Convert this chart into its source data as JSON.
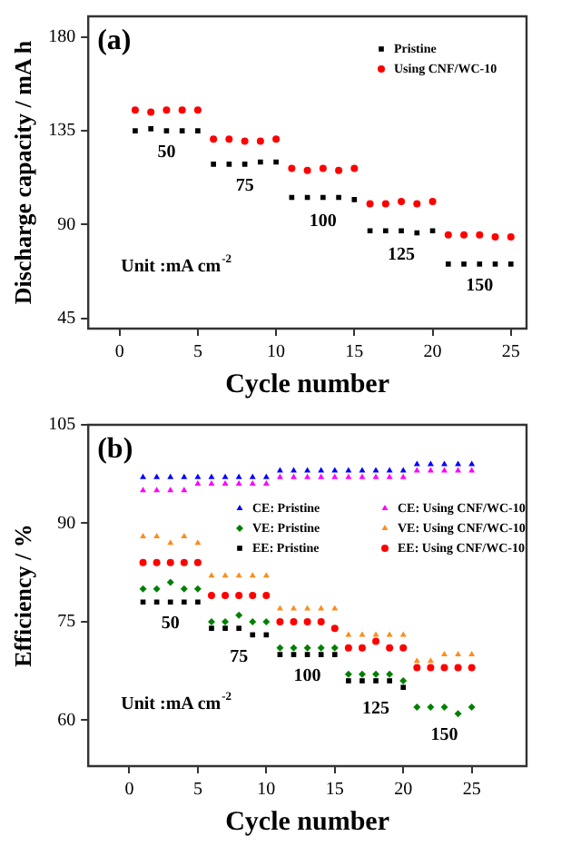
{
  "chart_data": [
    {
      "type": "scatter",
      "title": "(a)",
      "xlabel": "Cycle number",
      "ylabel": "Discharge capacity / mA h",
      "x": [
        1,
        2,
        3,
        4,
        5,
        6,
        7,
        8,
        9,
        10,
        11,
        12,
        13,
        14,
        15,
        16,
        17,
        18,
        19,
        20,
        21,
        22,
        23,
        24,
        25
      ],
      "series": [
        {
          "name": "Pristine",
          "color": "#000000",
          "marker": "square",
          "values": [
            135,
            136,
            135,
            135,
            135,
            119,
            119,
            119,
            120,
            120,
            103,
            103,
            103,
            103,
            102,
            87,
            87,
            87,
            86,
            87,
            71,
            71,
            71,
            71,
            71
          ]
        },
        {
          "name": "Using CNF/WC-10",
          "color": "#ff0000",
          "marker": "circle",
          "values": [
            145,
            144,
            145,
            145,
            145,
            131,
            131,
            130,
            130,
            131,
            117,
            116,
            117,
            116,
            117,
            100,
            100,
            101,
            100,
            101,
            85,
            85,
            85,
            84,
            84
          ]
        }
      ],
      "xlim": [
        -2,
        26
      ],
      "ylim": [
        40,
        190
      ],
      "xticks": [
        0,
        5,
        10,
        15,
        20,
        25
      ],
      "yticks": [
        45,
        90,
        135,
        180
      ],
      "grid": false,
      "legend": "top right",
      "annotations": [
        "50",
        "75",
        "100",
        "125",
        "150",
        "Unit :mA cm$^{-2}$"
      ]
    },
    {
      "type": "scatter",
      "title": "(b)",
      "xlabel": "Cycle number",
      "ylabel": "Efficiency / %",
      "x": [
        1,
        2,
        3,
        4,
        5,
        6,
        7,
        8,
        9,
        10,
        11,
        12,
        13,
        14,
        15,
        16,
        17,
        18,
        19,
        20,
        21,
        22,
        23,
        24,
        25
      ],
      "series": [
        {
          "name": "CE: Pristine",
          "color": "#0000ff",
          "marker": "triangle",
          "values": [
            97,
            97,
            97,
            97,
            97,
            97,
            97,
            97,
            97,
            97,
            98,
            98,
            98,
            98,
            98,
            98,
            98,
            98,
            98,
            98,
            99,
            99,
            99,
            99,
            99
          ]
        },
        {
          "name": "CE: Using CNF/WC-10",
          "color": "#ff00ff",
          "marker": "triangle",
          "values": [
            95,
            95,
            95,
            95,
            96,
            96,
            96,
            96,
            96,
            96,
            97,
            97,
            97,
            97,
            97,
            97,
            97,
            97,
            97,
            97,
            98,
            98,
            98,
            98,
            98
          ]
        },
        {
          "name": "VE: Pristine",
          "color": "#008000",
          "marker": "diamond",
          "values": [
            80,
            80,
            81,
            80,
            80,
            75,
            75,
            76,
            75,
            75,
            71,
            71,
            71,
            71,
            71,
            67,
            67,
            67,
            67,
            66,
            62,
            62,
            62,
            61,
            62
          ]
        },
        {
          "name": "VE: Using CNF/WC-10",
          "color": "#ff8c1a",
          "marker": "triangle",
          "values": [
            88,
            88,
            87,
            88,
            87,
            82,
            82,
            82,
            82,
            82,
            77,
            77,
            77,
            77,
            77,
            73,
            73,
            73,
            73,
            73,
            69,
            69,
            70,
            70,
            70
          ]
        },
        {
          "name": "EE: Pristine",
          "color": "#000000",
          "marker": "square",
          "values": [
            78,
            78,
            78,
            78,
            78,
            74,
            74,
            74,
            73,
            73,
            70,
            70,
            70,
            70,
            70,
            66,
            66,
            66,
            66,
            65,
            null,
            null,
            null,
            null,
            null
          ]
        },
        {
          "name": "EE: Using CNF/WC-10",
          "color": "#ff0000",
          "marker": "circle",
          "values": [
            84,
            84,
            84,
            84,
            84,
            79,
            79,
            79,
            79,
            79,
            75,
            75,
            75,
            75,
            74,
            71,
            71,
            72,
            71,
            71,
            68,
            68,
            68,
            68,
            68
          ]
        }
      ],
      "xlim": [
        -3,
        29
      ],
      "ylim": [
        53,
        105
      ],
      "xticks": [
        0,
        5,
        10,
        15,
        20,
        25
      ],
      "yticks": [
        60,
        75,
        90,
        105
      ],
      "grid": false,
      "legend": "top right",
      "annotations": [
        "50",
        "75",
        "100",
        "125",
        "150",
        "Unit :mA cm$^{-2}$"
      ]
    }
  ]
}
